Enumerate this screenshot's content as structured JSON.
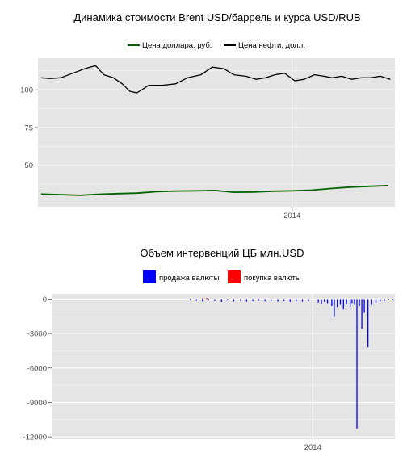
{
  "chart_data": [
    {
      "type": "line",
      "title": "Динамика стоимости Brent USD/баррель и курса USD/RUB",
      "xlabel": "",
      "ylabel": "",
      "x_ticks": [
        {
          "value": "2014-01-01",
          "label": "2014"
        }
      ],
      "xlim": [
        "2012-11-26",
        "2014-06-12"
      ],
      "y_ticks": [
        {
          "value": 50,
          "label": "50"
        },
        {
          "value": 75,
          "label": "75"
        },
        {
          "value": 100,
          "label": "100"
        }
      ],
      "ylim": [
        22,
        121
      ],
      "grid": true,
      "legend_position": "top",
      "series": [
        {
          "name": "Цена доллара, руб.",
          "color": "#006400",
          "x": [
            "2012-12-01",
            "2013-01-01",
            "2013-02-01",
            "2013-03-01",
            "2013-04-01",
            "2013-05-01",
            "2013-06-01",
            "2013-07-01",
            "2013-08-01",
            "2013-09-01",
            "2013-10-01",
            "2013-11-01",
            "2013-12-01",
            "2014-01-01",
            "2014-02-01",
            "2014-03-01",
            "2014-04-01",
            "2014-05-01",
            "2014-06-01"
          ],
          "values": [
            30.9,
            30.5,
            30.1,
            30.8,
            31.2,
            31.5,
            32.5,
            32.9,
            33.0,
            33.3,
            32.1,
            32.3,
            32.8,
            33.0,
            33.5,
            34.5,
            35.5,
            36.0,
            36.5
          ]
        },
        {
          "name": "Цена нефти, долл.",
          "color": "#000000",
          "x": [
            "2012-12-01",
            "2012-12-15",
            "2013-01-01",
            "2013-01-20",
            "2013-02-08",
            "2013-02-25",
            "2013-03-10",
            "2013-03-25",
            "2013-04-08",
            "2013-04-20",
            "2013-05-01",
            "2013-05-20",
            "2013-06-10",
            "2013-07-01",
            "2013-07-20",
            "2013-08-10",
            "2013-08-28",
            "2013-09-15",
            "2013-10-01",
            "2013-10-20",
            "2013-11-05",
            "2013-11-20",
            "2013-12-05",
            "2013-12-20",
            "2014-01-05",
            "2014-01-20",
            "2014-02-05",
            "2014-02-20",
            "2014-03-05",
            "2014-03-20",
            "2014-04-05",
            "2014-04-20",
            "2014-05-05",
            "2014-05-20",
            "2014-06-05"
          ],
          "values": [
            108,
            107.5,
            108,
            111,
            114,
            116,
            110,
            108,
            104,
            99,
            98,
            103,
            103,
            104,
            108,
            110,
            115,
            114,
            110,
            109,
            107,
            108,
            110,
            111,
            106,
            107,
            110,
            109,
            108,
            109,
            107,
            108,
            108,
            109,
            107
          ]
        }
      ]
    },
    {
      "type": "bar",
      "title": "Объем интервенций ЦБ млн.USD",
      "xlabel": "",
      "ylabel": "",
      "x_ticks": [
        {
          "value": "2014-01-01",
          "label": "2014"
        }
      ],
      "xlim": [
        "2012-11-01",
        "2014-05-15"
      ],
      "y_ticks": [
        {
          "value": -12000,
          "label": "-12000"
        },
        {
          "value": -9000,
          "label": "-9000"
        },
        {
          "value": -6000,
          "label": "-6000"
        },
        {
          "value": -3000,
          "label": "-3000"
        },
        {
          "value": 0,
          "label": "0"
        }
      ],
      "ylim": [
        -12200,
        450
      ],
      "grid": true,
      "legend_position": "top",
      "series": [
        {
          "name": "продажа валюты",
          "color": "#0000ff",
          "x": [
            "2013-06-15",
            "2013-06-25",
            "2013-07-05",
            "2013-07-15",
            "2013-07-25",
            "2013-08-05",
            "2013-08-15",
            "2013-08-25",
            "2013-09-05",
            "2013-09-15",
            "2013-09-25",
            "2013-10-05",
            "2013-10-15",
            "2013-10-25",
            "2013-11-05",
            "2013-11-15",
            "2013-11-25",
            "2013-12-05",
            "2013-12-15",
            "2013-12-25",
            "2014-01-10",
            "2014-01-15",
            "2014-01-20",
            "2014-01-25",
            "2014-02-01",
            "2014-02-05",
            "2014-02-10",
            "2014-02-15",
            "2014-02-20",
            "2014-02-25",
            "2014-03-03",
            "2014-03-06",
            "2014-03-10",
            "2014-03-14",
            "2014-03-18",
            "2014-03-22",
            "2014-03-26",
            "2014-04-01",
            "2014-04-07",
            "2014-04-14",
            "2014-04-21",
            "2014-04-28",
            "2014-05-05",
            "2014-05-12"
          ],
          "values": [
            -100,
            -150,
            -200,
            -120,
            -180,
            -250,
            -120,
            -200,
            -150,
            -220,
            -180,
            -140,
            -200,
            -160,
            -220,
            -180,
            -240,
            -200,
            -220,
            -180,
            -300,
            -450,
            -250,
            -350,
            -600,
            -1550,
            -700,
            -500,
            -900,
            -450,
            -700,
            -350,
            -500,
            -11300,
            -600,
            -2600,
            -1200,
            -4200,
            -500,
            -300,
            -200,
            -150,
            -100,
            -120
          ]
        },
        {
          "name": "покупка валюты",
          "color": "#ff0000",
          "x": [
            "2013-07-05",
            "2013-07-12"
          ],
          "values": [
            60,
            90
          ]
        }
      ]
    }
  ]
}
